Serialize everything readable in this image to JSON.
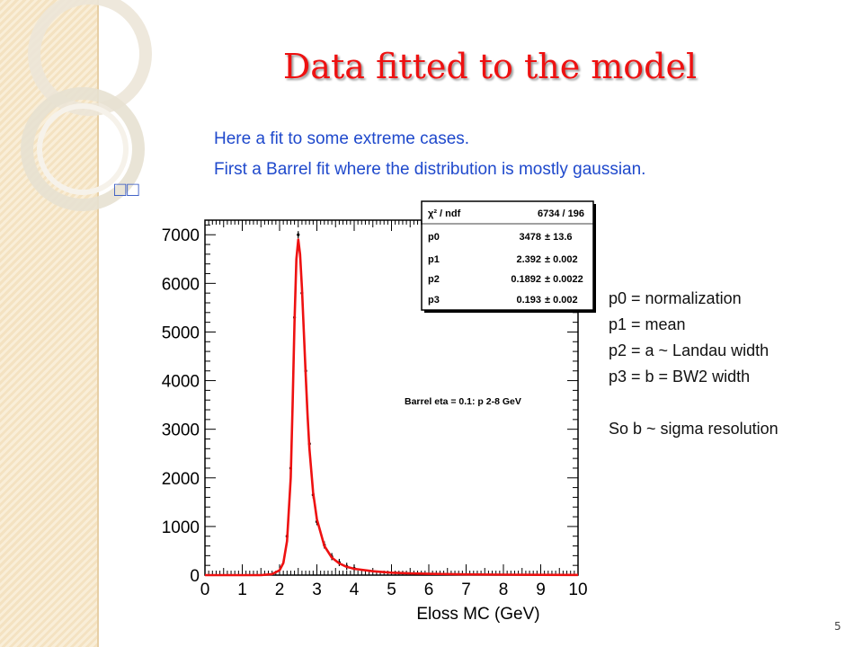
{
  "slide": {
    "title": "Data fitted to the model",
    "intro_line1": "Here a fit to some extreme cases.",
    "intro_line2": "First a Barrel fit where the distribution is mostly gaussian.",
    "glyphs": "□□",
    "params": [
      "p0 = normalization",
      "p1 = mean",
      "p2 = a ~ Landau width",
      "p3 = b = BW2 width",
      "So b ~ sigma resolution"
    ],
    "slide_number": "5"
  },
  "colors": {
    "title": "#ee1111",
    "intro_text": "#1f49cc",
    "fit_curve": "#ee1111",
    "data_points": "#000000",
    "side_strip": "#f4e2c1"
  },
  "chart_data": {
    "type": "line",
    "title": "",
    "xlabel": "Eloss MC (GeV)",
    "ylabel": "",
    "xlim": [
      0,
      10
    ],
    "ylim": [
      0,
      7300
    ],
    "x_ticks": [
      "0",
      "1",
      "2",
      "3",
      "4",
      "5",
      "6",
      "7",
      "8",
      "9",
      "10"
    ],
    "y_ticks": [
      "0",
      "1000",
      "2000",
      "3000",
      "4000",
      "5000",
      "6000",
      "7000"
    ],
    "annotation": "Barrel eta = 0.1: p 2-8 GeV",
    "stats_box": {
      "header": [
        "χ² / ndf",
        "6734 / 196"
      ],
      "rows": [
        [
          "p0",
          "3478",
          "± 13.6"
        ],
        [
          "p1",
          "2.392",
          "± 0.002"
        ],
        [
          "p2",
          "0.1892",
          "± 0.0022"
        ],
        [
          "p3",
          "0.193",
          "± 0.002"
        ]
      ]
    },
    "fit_curve": {
      "x": [
        0,
        1.0,
        1.5,
        1.8,
        2.0,
        2.1,
        2.2,
        2.3,
        2.35,
        2.4,
        2.45,
        2.5,
        2.55,
        2.6,
        2.65,
        2.7,
        2.75,
        2.8,
        2.9,
        3.0,
        3.2,
        3.4,
        3.6,
        3.8,
        4.0,
        4.5,
        5.0,
        5.5,
        6.0,
        7.0,
        8.0,
        9.0,
        10.0
      ],
      "y": [
        0,
        0,
        0,
        20,
        100,
        250,
        700,
        2000,
        3500,
        5200,
        6500,
        6900,
        6600,
        5900,
        5000,
        4100,
        3300,
        2600,
        1700,
        1150,
        600,
        360,
        240,
        170,
        130,
        80,
        50,
        35,
        25,
        15,
        10,
        6,
        4
      ]
    },
    "data_points": {
      "x": [
        2.2,
        2.3,
        2.4,
        2.5,
        2.6,
        2.7,
        2.8,
        2.9,
        3.0,
        3.2,
        3.4,
        3.6,
        3.8,
        4.0
      ],
      "y": [
        800,
        2200,
        5300,
        7000,
        5800,
        4200,
        2700,
        1650,
        1100,
        620,
        380,
        260,
        180,
        140
      ]
    }
  }
}
